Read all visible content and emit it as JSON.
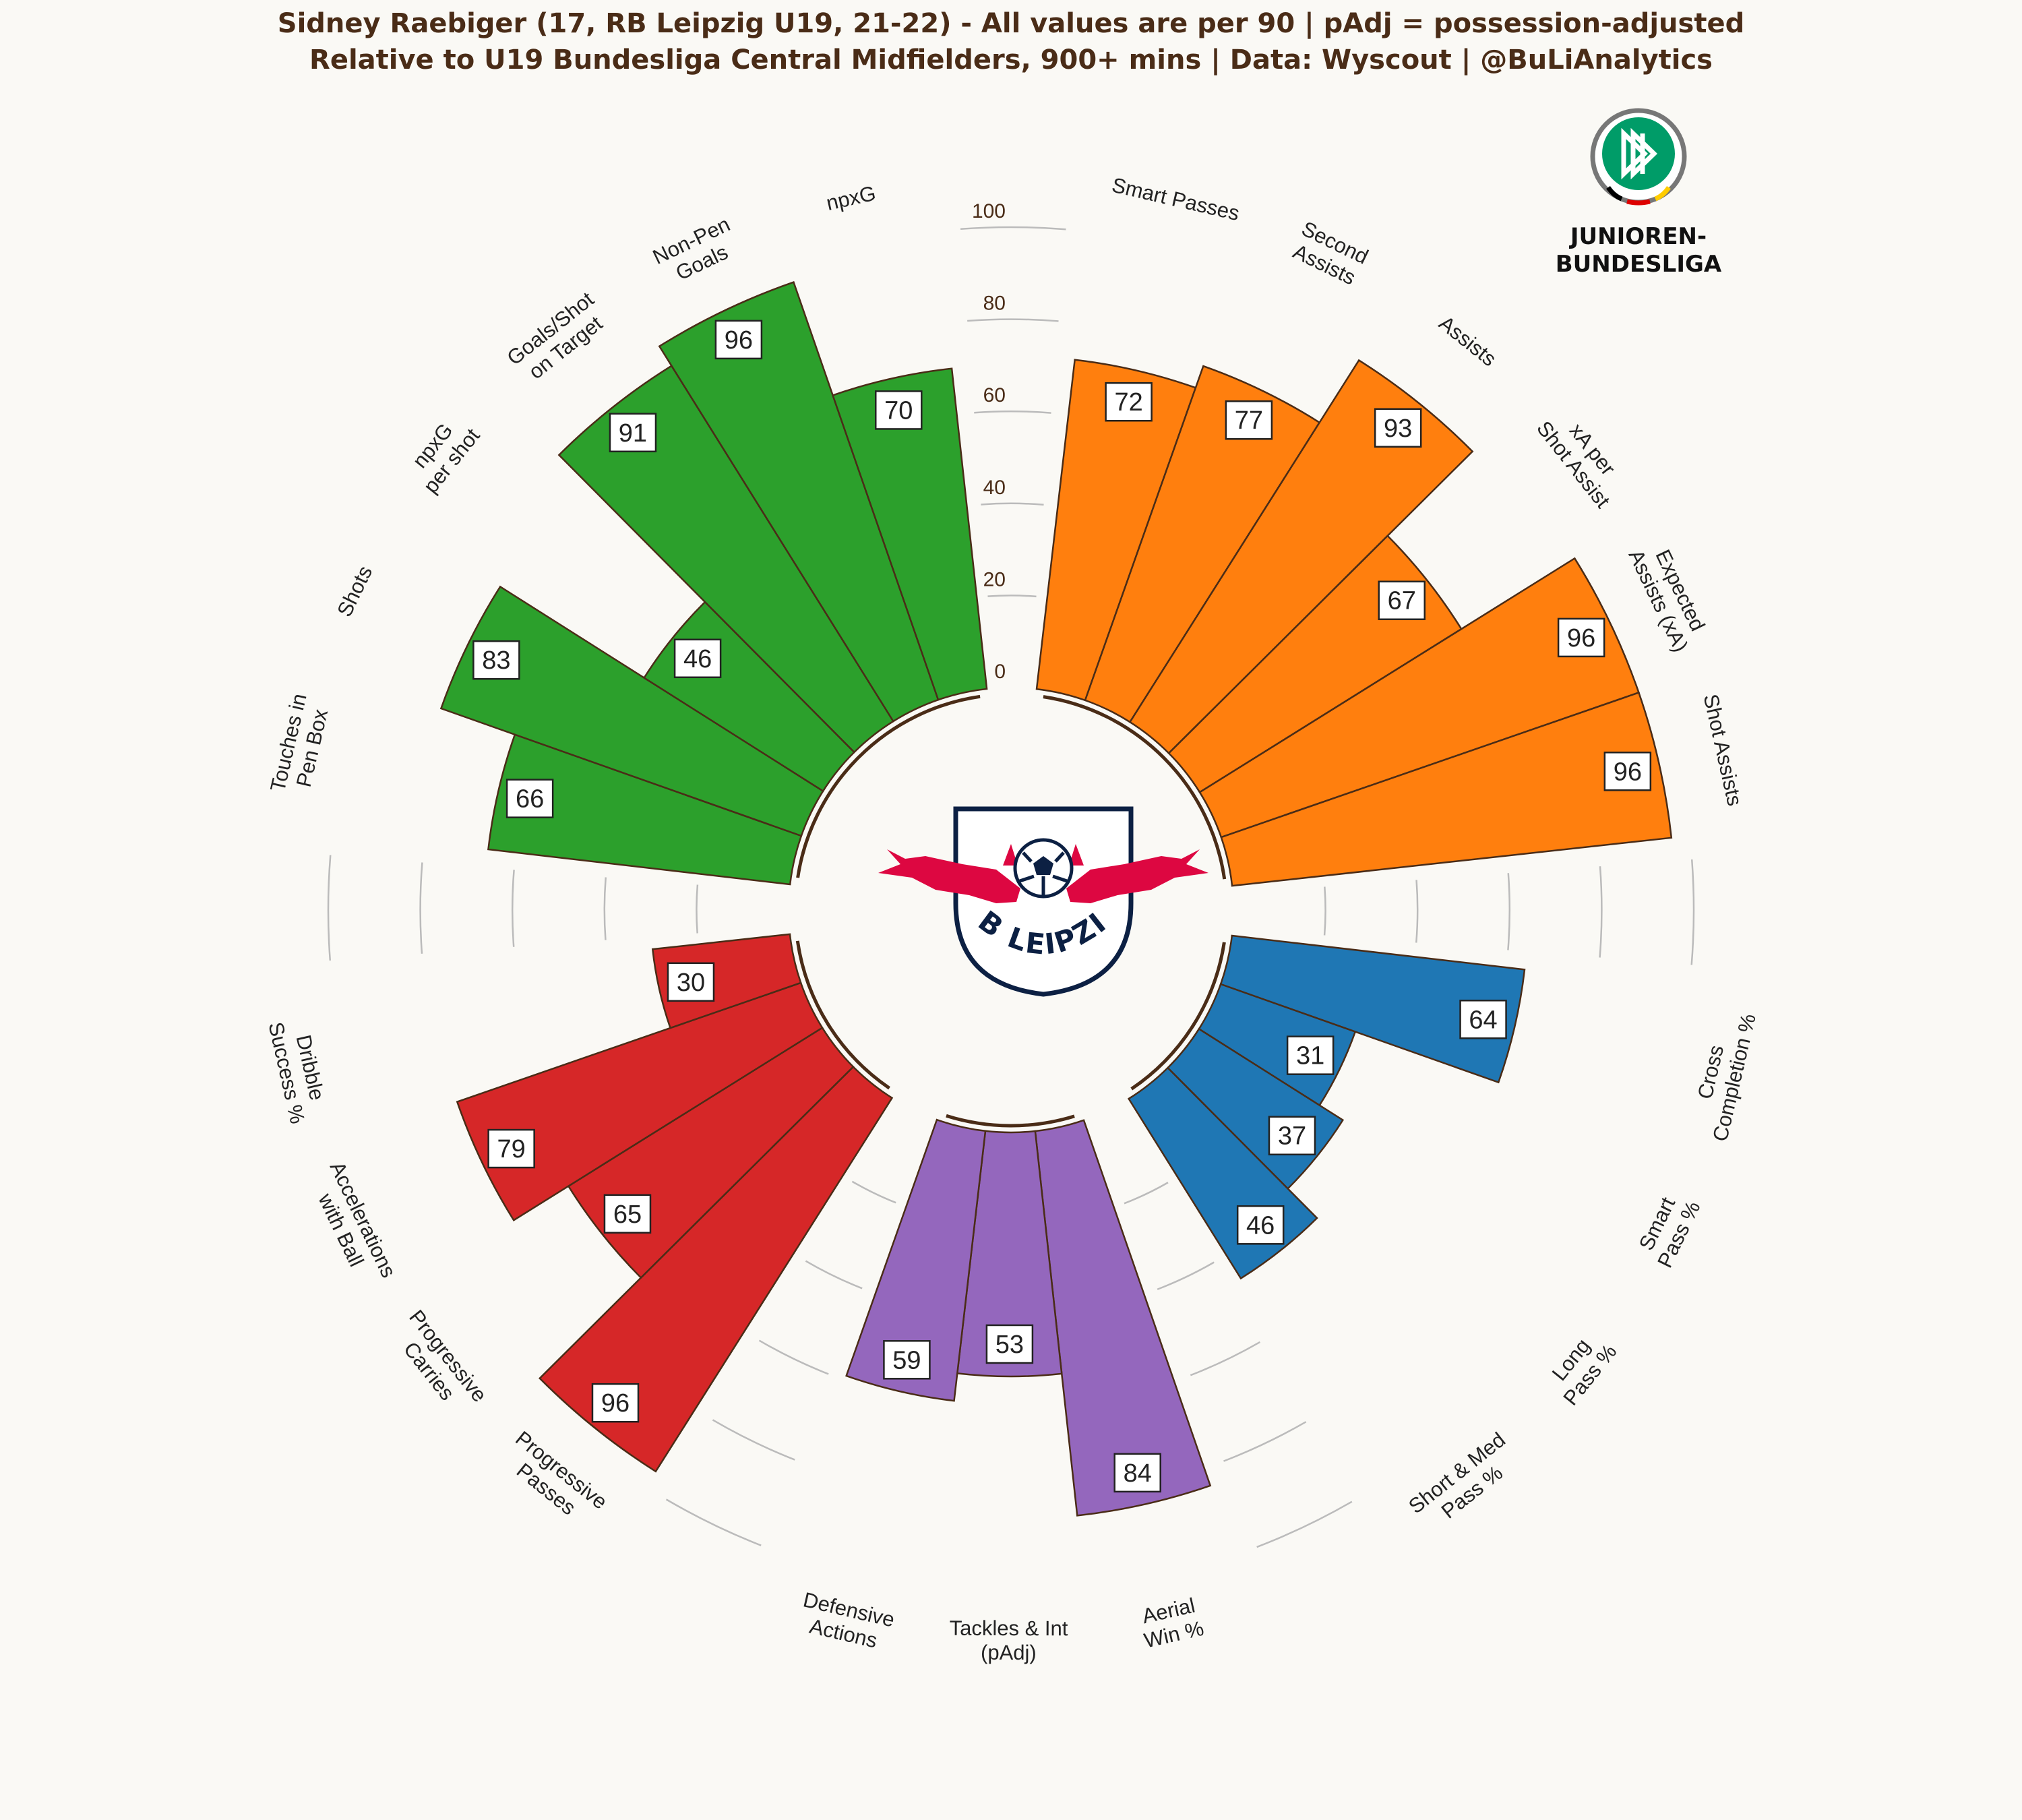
{
  "title_line1": "Sidney Raebiger (17, RB Leipzig U19, 21-22) - All values are per 90 | pAdj = possession-adjusted",
  "title_line2": "Relative to U19 Bundesliga Central Midfielders, 900+ mins | Data: Wyscout | @BuLiAnalytics",
  "logos": {
    "center_logo_text": "RB LEIPZIG",
    "league_logo_line1": "JUNIOREN-",
    "league_logo_line2": "BUNDESLIGA"
  },
  "colors": {
    "background": "#faf9f5",
    "text": "#4a2c17",
    "passing": "#1f77b4",
    "defending": "#9467bd",
    "progression": "#d62728",
    "shooting": "#2ca02c",
    "creation": "#ff7f0e",
    "bar_edge": "#4a2c17"
  },
  "chart_data": {
    "type": "pizza",
    "value_range": [
      0,
      100
    ],
    "radial_ticks": [
      0,
      20,
      40,
      60,
      80,
      100
    ],
    "direction": "clockwise",
    "parameters": [
      {
        "label": [
          "Aerial",
          "Win %"
        ],
        "value": 84,
        "group": "defending"
      },
      {
        "label": [
          "Tackles & Int",
          "(pAdj)"
        ],
        "value": 53,
        "group": "defending"
      },
      {
        "label": [
          "Defensive",
          "Actions"
        ],
        "value": 59,
        "group": "defending"
      },
      {
        "label": [
          "Progressive",
          "Passes"
        ],
        "value": 96,
        "group": "progression"
      },
      {
        "label": [
          "Progressive",
          "Carries"
        ],
        "value": 65,
        "group": "progression"
      },
      {
        "label": [
          "Accelerations",
          "with Ball"
        ],
        "value": 79,
        "group": "progression"
      },
      {
        "label": [
          "Dribble",
          "Success %"
        ],
        "value": 30,
        "group": "progression"
      },
      {
        "label": [
          "Touches in",
          "Pen Box"
        ],
        "value": 66,
        "group": "shooting"
      },
      {
        "label": [
          "Shots"
        ],
        "value": 83,
        "group": "shooting"
      },
      {
        "label": [
          "npxG",
          "per shot"
        ],
        "value": 46,
        "group": "shooting"
      },
      {
        "label": [
          "Goals/Shot",
          "on Target"
        ],
        "value": 91,
        "group": "shooting"
      },
      {
        "label": [
          "Non-Pen",
          "Goals"
        ],
        "value": 96,
        "group": "shooting"
      },
      {
        "label": [
          "npxG"
        ],
        "value": 70,
        "group": "shooting"
      },
      {
        "label": [
          "Smart Passes"
        ],
        "value": 72,
        "group": "creation"
      },
      {
        "label": [
          "Second",
          "Assists"
        ],
        "value": 77,
        "group": "creation"
      },
      {
        "label": [
          "Assists"
        ],
        "value": 93,
        "group": "creation"
      },
      {
        "label": [
          "xA per",
          "Shot Assist"
        ],
        "value": 67,
        "group": "creation"
      },
      {
        "label": [
          "Expected",
          "Assists (xA)"
        ],
        "value": 96,
        "group": "creation"
      },
      {
        "label": [
          "Shot Assists"
        ],
        "value": 96,
        "group": "creation"
      },
      {
        "label": [
          "Cross",
          "Completion %"
        ],
        "value": 64,
        "group": "passing"
      },
      {
        "label": [
          "Smart",
          "Pass %"
        ],
        "value": 31,
        "group": "passing"
      },
      {
        "label": [
          "Long",
          "Pass %"
        ],
        "value": 37,
        "group": "passing"
      },
      {
        "label": [
          "Short & Med",
          "Pass %"
        ],
        "value": 46,
        "group": "passing"
      }
    ]
  }
}
